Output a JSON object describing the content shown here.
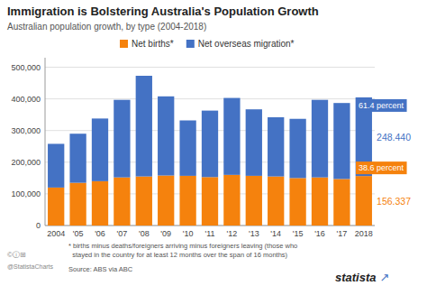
{
  "chart_data": {
    "type": "bar",
    "stacked": true,
    "title": "Immigration is Bolstering Australia's Population Growth",
    "subtitle": "Australian population growth, by type (2004-2018)",
    "categories": [
      "2004",
      "'05",
      "'06",
      "'07",
      "'08",
      "'09",
      "'10",
      "'11",
      "'12",
      "'13",
      "'14",
      "'15",
      "'16",
      "'17",
      "2018"
    ],
    "series": [
      {
        "name": "Net births*",
        "color": "#f5820d",
        "values": [
          120000,
          135000,
          140000,
          152000,
          155000,
          158000,
          157000,
          153000,
          160000,
          157000,
          155000,
          150000,
          152000,
          147000,
          156337
        ]
      },
      {
        "name": "Net overseas migration*",
        "color": "#4472c4",
        "values": [
          138000,
          155000,
          198000,
          245000,
          318000,
          250000,
          175000,
          210000,
          243000,
          210000,
          187000,
          187000,
          245000,
          240000,
          248440
        ]
      }
    ],
    "ylim": [
      0,
      530000
    ],
    "yticks": [
      0,
      {
        "value": 100000,
        "label": "100,000"
      },
      {
        "value": 200000,
        "label": "200,000"
      },
      {
        "value": 300000,
        "label": "300,000"
      },
      {
        "value": 400000,
        "label": "400,000"
      },
      {
        "value": 500000,
        "label": "500,000"
      }
    ],
    "grid": true,
    "legend": "upper left",
    "annotations": [
      "248.440",
      "156.337",
      "61.4 percent",
      "38.6 percent"
    ],
    "footnotes": [
      "* births minus deaths/foreigners arriving minus foreigners leaving (those who",
      "  stayed in the country for at least 12 months over the span of 16 months)"
    ],
    "source": "Source: ABS via ABC",
    "credits": [
      "statista",
      "↗",
      "©ⓘ⊞",
      "@StatistaCharts"
    ]
  }
}
